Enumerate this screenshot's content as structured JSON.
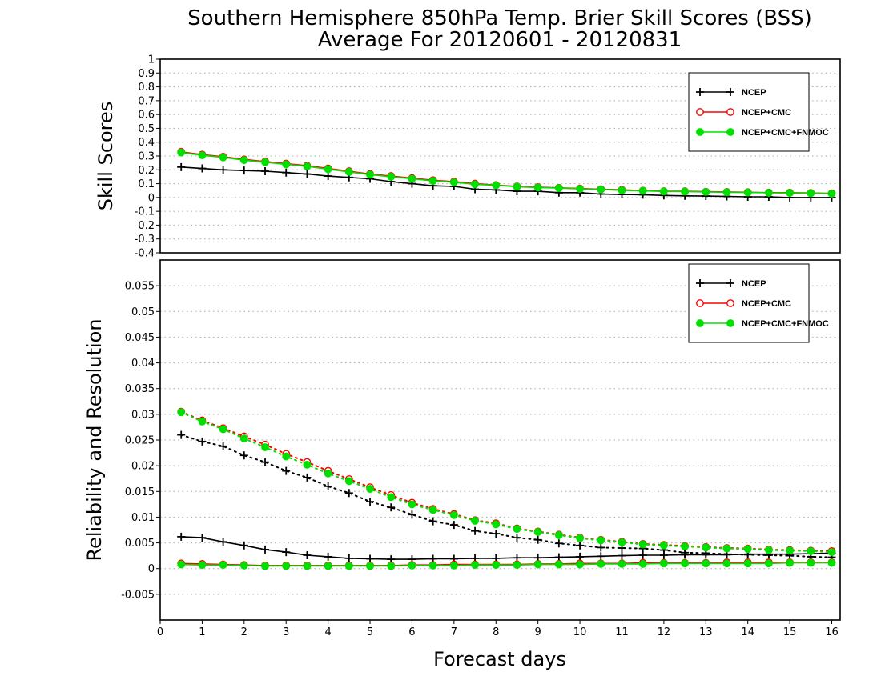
{
  "titles": {
    "line1": "Southern Hemisphere 850hPa Temp. Brier Skill Scores (BSS)",
    "line2": "Average For 20120601 - 20120831"
  },
  "colors": {
    "NCEP": "#000000",
    "NCEP+CMC": "#ff0000",
    "NCEP+CMC+FNMOC": "#00e000"
  },
  "chart_data": [
    {
      "type": "line",
      "ylabel": "Skill Scores",
      "xlabel": "",
      "xlim": [
        0,
        16.2
      ],
      "ylim": [
        -0.4,
        1
      ],
      "grid": true,
      "legend_position": "top-right",
      "xticks": [],
      "yticks": [
        "-0.4",
        "-0.3",
        "-0.2",
        "-0.1",
        "0",
        "0.1",
        "0.2",
        "0.3",
        "0.4",
        "0.5",
        "0.6",
        "0.7",
        "0.8",
        "0.9",
        "1"
      ],
      "x": [
        0.5,
        1,
        1.5,
        2,
        2.5,
        3,
        3.5,
        4,
        4.5,
        5,
        5.5,
        6,
        6.5,
        7,
        7.5,
        8,
        8.5,
        9,
        9.5,
        10,
        10.5,
        11,
        11.5,
        12,
        12.5,
        13,
        13.5,
        14,
        14.5,
        15,
        15.5,
        16
      ],
      "series": [
        {
          "name": "NCEP",
          "marker": "plus",
          "style": "solid",
          "values": [
            0.22,
            0.21,
            0.2,
            0.195,
            0.19,
            0.18,
            0.17,
            0.155,
            0.145,
            0.135,
            0.115,
            0.1,
            0.085,
            0.08,
            0.06,
            0.055,
            0.045,
            0.045,
            0.035,
            0.035,
            0.025,
            0.022,
            0.02,
            0.015,
            0.012,
            0.01,
            0.008,
            0.005,
            0.005,
            0.0,
            0.0,
            0.0
          ]
        },
        {
          "name": "NCEP+CMC",
          "marker": "circle-open",
          "style": "solid",
          "values": [
            0.33,
            0.31,
            0.295,
            0.275,
            0.26,
            0.245,
            0.23,
            0.21,
            0.19,
            0.17,
            0.155,
            0.14,
            0.125,
            0.115,
            0.1,
            0.09,
            0.08,
            0.075,
            0.07,
            0.065,
            0.06,
            0.055,
            0.05,
            0.045,
            0.045,
            0.042,
            0.04,
            0.038,
            0.035,
            0.035,
            0.033,
            0.03
          ]
        },
        {
          "name": "NCEP+CMC+FNMOC",
          "marker": "circle-filled",
          "style": "solid",
          "values": [
            0.325,
            0.305,
            0.29,
            0.27,
            0.255,
            0.24,
            0.225,
            0.205,
            0.185,
            0.165,
            0.15,
            0.135,
            0.12,
            0.11,
            0.095,
            0.088,
            0.078,
            0.072,
            0.068,
            0.062,
            0.058,
            0.052,
            0.048,
            0.044,
            0.043,
            0.04,
            0.038,
            0.036,
            0.034,
            0.033,
            0.031,
            0.028
          ]
        }
      ]
    },
    {
      "type": "line",
      "ylabel": "Reliability and Resolution",
      "xlabel": "Forecast days",
      "xlim": [
        0,
        16.2
      ],
      "ylim": [
        -0.01,
        0.06
      ],
      "grid": true,
      "legend_position": "top-right",
      "xticks": [
        "0",
        "1",
        "2",
        "3",
        "4",
        "5",
        "6",
        "7",
        "8",
        "9",
        "10",
        "11",
        "12",
        "13",
        "14",
        "15",
        "16"
      ],
      "yticks": [
        "-0.005",
        "0",
        "0.005",
        "0.01",
        "0.015",
        "0.02",
        "0.025",
        "0.03",
        "0.035",
        "0.04",
        "0.045",
        "0.05",
        "0.055"
      ],
      "x": [
        0.5,
        1,
        1.5,
        2,
        2.5,
        3,
        3.5,
        4,
        4.5,
        5,
        5.5,
        6,
        6.5,
        7,
        7.5,
        8,
        8.5,
        9,
        9.5,
        10,
        10.5,
        11,
        11.5,
        12,
        12.5,
        13,
        13.5,
        14,
        14.5,
        15,
        15.5,
        16
      ],
      "series": [
        {
          "name": "NCEP",
          "component": "reliability",
          "marker": "plus",
          "style": "solid",
          "values": [
            0.0062,
            0.006,
            0.0052,
            0.0045,
            0.0037,
            0.0032,
            0.0026,
            0.0023,
            0.002,
            0.0019,
            0.0018,
            0.0018,
            0.0019,
            0.0019,
            0.002,
            0.002,
            0.0021,
            0.0021,
            0.0022,
            0.0023,
            0.0024,
            0.0025,
            0.0026,
            0.0026,
            0.0027,
            0.0027,
            0.0027,
            0.0028,
            0.0028,
            0.0028,
            0.0029,
            0.003
          ]
        },
        {
          "name": "NCEP",
          "component": "resolution",
          "marker": "plus",
          "style": "dotted",
          "values": [
            0.026,
            0.0247,
            0.0238,
            0.022,
            0.0207,
            0.019,
            0.0177,
            0.016,
            0.0147,
            0.013,
            0.0119,
            0.0105,
            0.0092,
            0.0085,
            0.0073,
            0.0068,
            0.006,
            0.0056,
            0.0049,
            0.0045,
            0.0041,
            0.004,
            0.0039,
            0.0036,
            0.0031,
            0.003,
            0.0028,
            0.0027,
            0.0026,
            0.0025,
            0.0023,
            0.0022
          ]
        },
        {
          "name": "NCEP+CMC",
          "component": "reliability",
          "marker": "circle-open",
          "style": "solid",
          "values": [
            0.001,
            0.0009,
            0.0008,
            0.0007,
            0.0006,
            0.0006,
            0.0006,
            0.0006,
            0.0006,
            0.0006,
            0.0006,
            0.0007,
            0.0007,
            0.0008,
            0.0008,
            0.0008,
            0.0008,
            0.0009,
            0.0009,
            0.001,
            0.001,
            0.001,
            0.0011,
            0.0011,
            0.0011,
            0.0011,
            0.0012,
            0.0012,
            0.0012,
            0.0012,
            0.0012,
            0.0012
          ]
        },
        {
          "name": "NCEP+CMC",
          "component": "resolution",
          "marker": "circle-open",
          "style": "dotted",
          "values": [
            0.0305,
            0.0288,
            0.0273,
            0.0257,
            0.0241,
            0.0223,
            0.0207,
            0.019,
            0.0174,
            0.0158,
            0.0143,
            0.0128,
            0.0116,
            0.0106,
            0.0094,
            0.0088,
            0.0078,
            0.0072,
            0.0066,
            0.006,
            0.0056,
            0.0052,
            0.0048,
            0.0046,
            0.0044,
            0.0042,
            0.004,
            0.0039,
            0.0037,
            0.0036,
            0.0035,
            0.0034
          ]
        },
        {
          "name": "NCEP+CMC+FNMOC",
          "component": "reliability",
          "marker": "circle-filled",
          "style": "solid",
          "values": [
            0.0008,
            0.0007,
            0.0007,
            0.0006,
            0.0005,
            0.0005,
            0.0005,
            0.0005,
            0.0005,
            0.0005,
            0.0005,
            0.0006,
            0.0006,
            0.0006,
            0.0007,
            0.0007,
            0.0007,
            0.0008,
            0.0008,
            0.0008,
            0.0009,
            0.0009,
            0.0009,
            0.001,
            0.001,
            0.001,
            0.001,
            0.001,
            0.001,
            0.0011,
            0.0011,
            0.0011
          ]
        },
        {
          "name": "NCEP+CMC+FNMOC",
          "component": "resolution",
          "marker": "circle-filled",
          "style": "dotted",
          "values": [
            0.0304,
            0.0286,
            0.0271,
            0.0253,
            0.0236,
            0.0218,
            0.0202,
            0.0185,
            0.017,
            0.0155,
            0.0139,
            0.0125,
            0.0114,
            0.0104,
            0.0093,
            0.0086,
            0.0077,
            0.0071,
            0.0065,
            0.0059,
            0.0055,
            0.0051,
            0.0047,
            0.0045,
            0.0043,
            0.0041,
            0.0039,
            0.0038,
            0.0036,
            0.0035,
            0.0034,
            0.0032
          ]
        }
      ]
    }
  ],
  "legend": [
    "NCEP",
    "NCEP+CMC",
    "NCEP+CMC+FNMOC"
  ]
}
